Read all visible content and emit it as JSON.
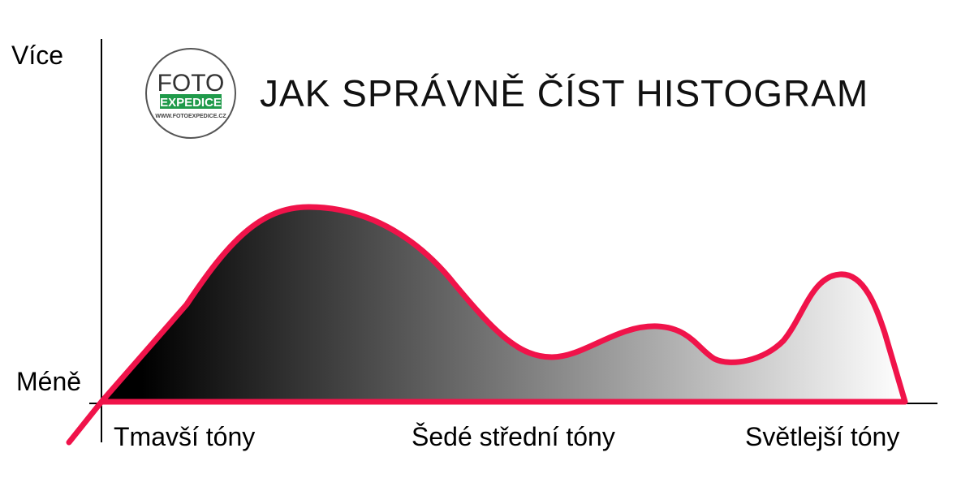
{
  "title": "JAK SPRÁVNĚ ČÍST HISTOGRAM",
  "y_axis": {
    "top_label": "Více",
    "bottom_label": "Méně"
  },
  "x_axis": {
    "labels": [
      "Tmavší tóny",
      "Šedé střední tóny",
      "Světlejší tóny"
    ]
  },
  "logo": {
    "line1": "FOTO",
    "line2": "EXPEDICE",
    "line3": "WWW.FOTOEXPEDICE.CZ"
  },
  "colors": {
    "curve": "#f0134a",
    "logo_green": "#1f9a4a",
    "fill_dark": "#000000",
    "fill_light": "#ffffff"
  }
}
